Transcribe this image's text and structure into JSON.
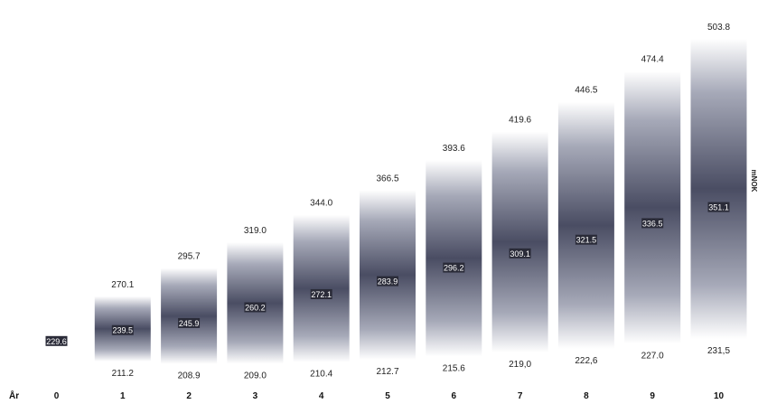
{
  "chart_data": {
    "type": "bar",
    "x_axis_label": "År",
    "unit_label": "mNOK",
    "categories": [
      "0",
      "1",
      "2",
      "3",
      "4",
      "5",
      "6",
      "7",
      "8",
      "9",
      "10"
    ],
    "series": [
      {
        "values": [
          null,
          270.1,
          295.7,
          319.0,
          344.0,
          366.5,
          393.6,
          419.6,
          446.5,
          474.4,
          503.8
        ]
      },
      {
        "values": [
          229.6,
          239.5,
          245.9,
          260.2,
          272.1,
          283.9,
          296.2,
          309.1,
          321.5,
          336.5,
          351.1
        ]
      },
      {
        "values": [
          null,
          211.2,
          208.9,
          209.0,
          210.4,
          212.7,
          215.6,
          219.0,
          222.6,
          227.0,
          231.5
        ]
      }
    ],
    "top_labels": [
      "",
      "270.1",
      "295.7",
      "319.0",
      "344.0",
      "366.5",
      "393.6",
      "419.6",
      "446.5",
      "474.4",
      "503.8"
    ],
    "mid_labels": [
      "229.6",
      "239.5",
      "245.9",
      "260.2",
      "272.1",
      "283.9",
      "296.2",
      "309.1",
      "321.5",
      "336.5",
      "351.1"
    ],
    "bottom_labels": [
      "",
      "211.2",
      "208.9",
      "209.0",
      "210.4",
      "212.7",
      "215.6",
      "219,0",
      "222,6",
      "227.0",
      "231,5"
    ],
    "legend": "none",
    "grid": false
  }
}
